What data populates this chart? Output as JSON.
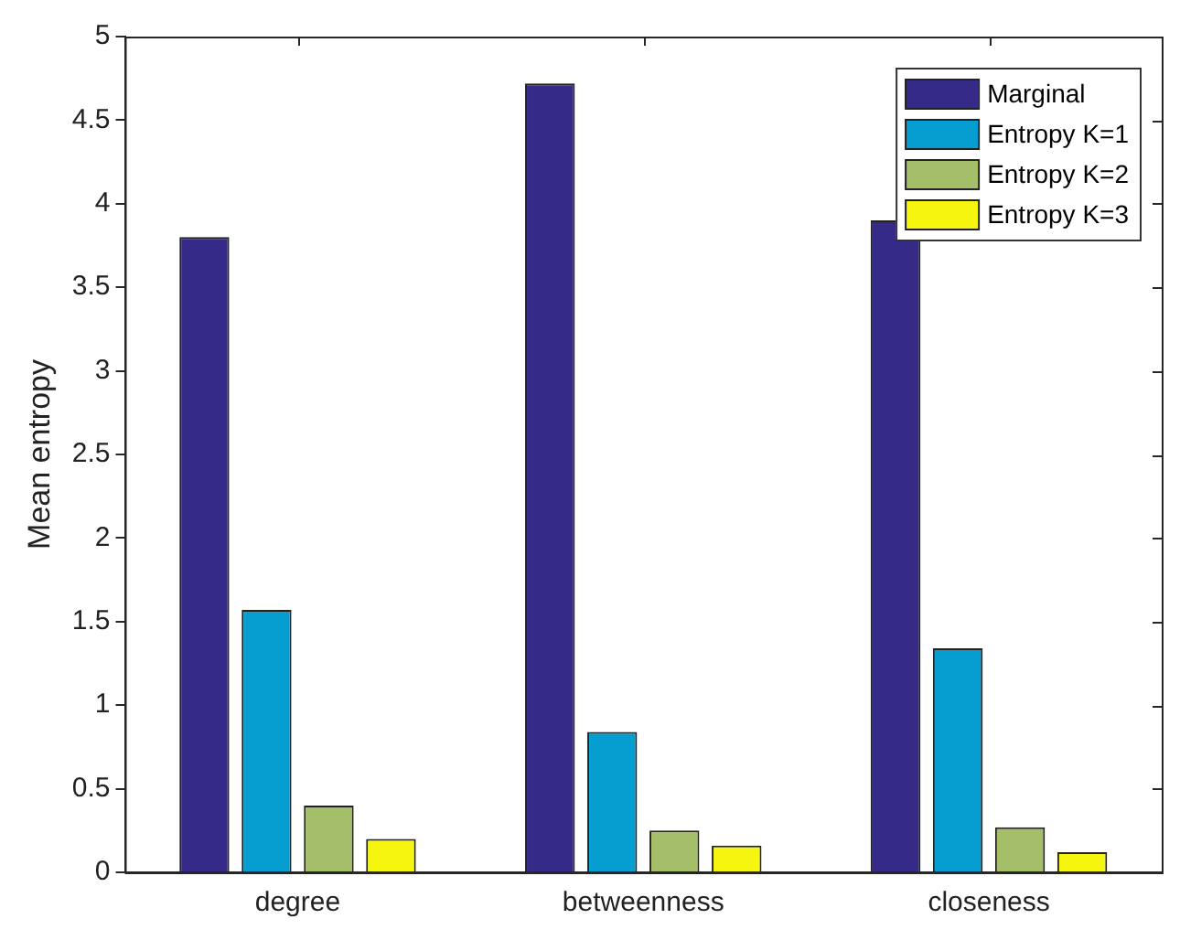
{
  "chart_data": {
    "type": "bar",
    "ylabel": "Mean entropy",
    "categories": [
      "degree",
      "betweenness",
      "closeness"
    ],
    "series": [
      {
        "name": "Marginal",
        "color": "#352a87",
        "values": [
          3.8,
          4.72,
          3.9
        ]
      },
      {
        "name": "Entropy K=1",
        "color": "#069ed1",
        "values": [
          1.57,
          0.84,
          1.34
        ]
      },
      {
        "name": "Entropy K=2",
        "color": "#a5be6a",
        "values": [
          0.4,
          0.25,
          0.27
        ]
      },
      {
        "name": "Entropy K=3",
        "color": "#f5f50f",
        "values": [
          0.2,
          0.16,
          0.12
        ]
      }
    ],
    "ylim": [
      0,
      5
    ],
    "yticks": [
      0,
      0.5,
      1,
      1.5,
      2,
      2.5,
      3,
      3.5,
      4,
      4.5,
      5
    ],
    "grid": false,
    "legend": "top right"
  }
}
